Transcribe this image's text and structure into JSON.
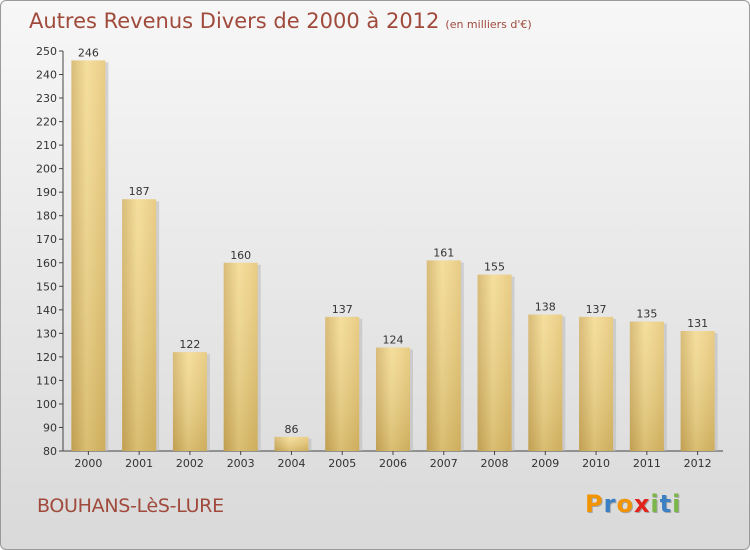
{
  "header": {
    "title": "Autres Revenus Divers de 2000 à 2012",
    "subtitle": "(en milliers d'€)"
  },
  "footer": {
    "location": "BOUHANS-LèS-LURE"
  },
  "brand": {
    "letters": [
      "P",
      "r",
      "o",
      "x",
      "i",
      "t",
      "i"
    ],
    "colors": [
      "#f29400",
      "#3b7fc4",
      "#f29400",
      "#e2231a",
      "#7ab648",
      "#3b7fc4",
      "#7ab648"
    ]
  },
  "chart_data": {
    "type": "bar",
    "categories": [
      "2000",
      "2001",
      "2002",
      "2003",
      "2004",
      "2005",
      "2006",
      "2007",
      "2008",
      "2009",
      "2010",
      "2011",
      "2012"
    ],
    "values": [
      246,
      187,
      122,
      160,
      86,
      137,
      124,
      161,
      155,
      138,
      137,
      135,
      131
    ],
    "title": "Autres Revenus Divers de 2000 à 2012",
    "subtitle": "(en milliers d'€)",
    "xlabel": "",
    "ylabel": "",
    "ylim": [
      80,
      250
    ],
    "yticks": [
      80,
      90,
      100,
      110,
      120,
      130,
      140,
      150,
      160,
      170,
      180,
      190,
      200,
      210,
      220,
      230,
      240,
      250
    ],
    "grid": false,
    "bar_color": "#e8c36a"
  }
}
